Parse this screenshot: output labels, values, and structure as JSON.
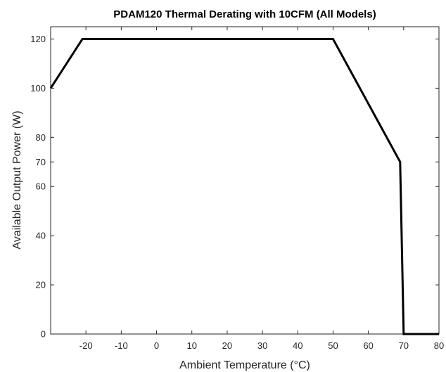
{
  "chart_data": {
    "type": "line",
    "title": "PDAM120 Thermal Derating with 10CFM (All Models)",
    "xlabel": "Ambient Temperature (°C)",
    "ylabel": "Available Output Power (W)",
    "xlim": [
      -30,
      80
    ],
    "ylim": [
      0,
      125
    ],
    "xticks": [
      -20,
      -10,
      0,
      10,
      20,
      30,
      40,
      50,
      60,
      70,
      80
    ],
    "yticks": [
      0,
      20,
      40,
      60,
      70,
      80,
      100,
      120
    ],
    "grid": false,
    "legend": "none",
    "series": [
      {
        "color": "#000000",
        "x": [
          -30,
          -21,
          50,
          69,
          70,
          80
        ],
        "y": [
          100,
          120,
          120,
          70,
          0,
          0
        ]
      }
    ]
  }
}
